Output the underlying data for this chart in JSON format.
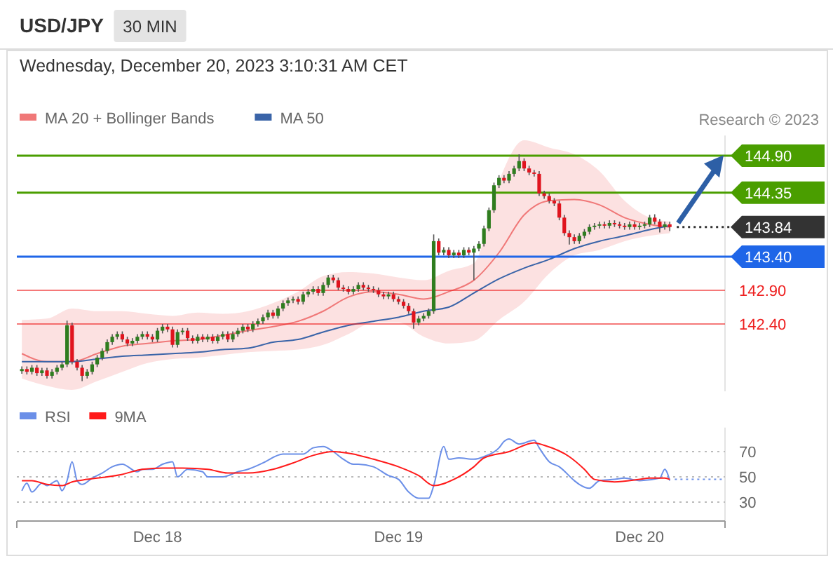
{
  "chart_data": [
    {
      "type": "candlestick",
      "title": "USD/JPY",
      "subtitle": "30 MIN",
      "annotations": [
        "Wednesday, December 20, 2023 3:10:31 AM CET",
        "Research © 2023"
      ],
      "legend": "top left",
      "xlim": [
        "2023-12-17T10:00",
        "2023-12-20T08:30"
      ],
      "ylim": [
        141.4,
        145.2
      ],
      "x": [
        "2023-12-17T10:30",
        "2023-12-17T11:00",
        "2023-12-17T11:30",
        "2023-12-17T12:00",
        "2023-12-17T12:30",
        "2023-12-17T13:00",
        "2023-12-17T13:30",
        "2023-12-17T14:00",
        "2023-12-17T14:30",
        "2023-12-17T15:00",
        "2023-12-17T15:30",
        "2023-12-17T16:00",
        "2023-12-17T16:30",
        "2023-12-17T17:00",
        "2023-12-17T17:30",
        "2023-12-17T18:00",
        "2023-12-17T18:30",
        "2023-12-17T19:00",
        "2023-12-17T19:30",
        "2023-12-17T20:00",
        "2023-12-17T20:30",
        "2023-12-17T21:00",
        "2023-12-17T21:30",
        "2023-12-17T22:00",
        "2023-12-17T22:30",
        "2023-12-17T23:00",
        "2023-12-17T23:30",
        "2023-12-18T00:00",
        "2023-12-18T00:30",
        "2023-12-18T01:00",
        "2023-12-18T01:30",
        "2023-12-18T02:00",
        "2023-12-18T02:30",
        "2023-12-18T03:00",
        "2023-12-18T03:30",
        "2023-12-18T04:00",
        "2023-12-18T04:30",
        "2023-12-18T05:00",
        "2023-12-18T05:30",
        "2023-12-18T06:00",
        "2023-12-18T06:30",
        "2023-12-18T07:00",
        "2023-12-18T07:30",
        "2023-12-18T08:00",
        "2023-12-18T08:30",
        "2023-12-18T09:00",
        "2023-12-18T09:30",
        "2023-12-18T10:00",
        "2023-12-18T10:30",
        "2023-12-18T11:00",
        "2023-12-18T11:30",
        "2023-12-18T12:00",
        "2023-12-18T12:30",
        "2023-12-18T13:00",
        "2023-12-18T13:30",
        "2023-12-18T14:00",
        "2023-12-18T14:30",
        "2023-12-18T15:00",
        "2023-12-18T15:30",
        "2023-12-18T16:00",
        "2023-12-18T16:30",
        "2023-12-18T17:00",
        "2023-12-18T17:30",
        "2023-12-18T18:00",
        "2023-12-18T18:30",
        "2023-12-18T19:00",
        "2023-12-18T19:30",
        "2023-12-18T20:00",
        "2023-12-18T20:30",
        "2023-12-18T21:00",
        "2023-12-18T21:30",
        "2023-12-18T22:00",
        "2023-12-18T22:30",
        "2023-12-18T23:00",
        "2023-12-18T23:30",
        "2023-12-19T00:00",
        "2023-12-19T00:30",
        "2023-12-19T01:00",
        "2023-12-19T01:30",
        "2023-12-19T02:00",
        "2023-12-19T02:30",
        "2023-12-19T03:00",
        "2023-12-19T03:30",
        "2023-12-19T04:00",
        "2023-12-19T04:30",
        "2023-12-19T05:00",
        "2023-12-19T05:30",
        "2023-12-19T06:00",
        "2023-12-19T06:30",
        "2023-12-19T07:00",
        "2023-12-19T07:30",
        "2023-12-19T08:00",
        "2023-12-19T08:30",
        "2023-12-19T09:00",
        "2023-12-19T09:30",
        "2023-12-19T10:00",
        "2023-12-19T10:30",
        "2023-12-19T11:00",
        "2023-12-19T11:30",
        "2023-12-19T12:00",
        "2023-12-19T12:30",
        "2023-12-19T13:00",
        "2023-12-19T13:30",
        "2023-12-19T14:00",
        "2023-12-19T14:30",
        "2023-12-19T15:00",
        "2023-12-19T15:30",
        "2023-12-19T16:00",
        "2023-12-19T16:30",
        "2023-12-19T17:00",
        "2023-12-19T17:30",
        "2023-12-19T18:00",
        "2023-12-19T18:30",
        "2023-12-19T19:00",
        "2023-12-19T19:30",
        "2023-12-19T20:00",
        "2023-12-19T20:30",
        "2023-12-19T21:00",
        "2023-12-19T21:30",
        "2023-12-19T22:00",
        "2023-12-19T22:30",
        "2023-12-19T23:00",
        "2023-12-19T23:30",
        "2023-12-20T00:00",
        "2023-12-20T00:30",
        "2023-12-20T01:00",
        "2023-12-20T01:30",
        "2023-12-20T02:00",
        "2023-12-20T02:30",
        "2023-12-20T03:00"
      ],
      "ohlc": [
        [
          141.7,
          141.77,
          141.66,
          141.73
        ],
        [
          141.73,
          141.77,
          141.65,
          141.69
        ],
        [
          141.69,
          141.79,
          141.65,
          141.75
        ],
        [
          141.75,
          141.79,
          141.63,
          141.67
        ],
        [
          141.67,
          141.75,
          141.63,
          141.71
        ],
        [
          141.71,
          141.75,
          141.59,
          141.63
        ],
        [
          141.63,
          141.73,
          141.59,
          141.69
        ],
        [
          141.69,
          141.79,
          141.65,
          141.75
        ],
        [
          141.75,
          141.84,
          141.71,
          141.8
        ],
        [
          141.8,
          142.45,
          141.76,
          142.38
        ],
        [
          142.38,
          142.42,
          141.8,
          141.84
        ],
        [
          141.84,
          141.88,
          141.71,
          141.75
        ],
        [
          141.75,
          141.79,
          141.55,
          141.63
        ],
        [
          141.63,
          141.73,
          141.59,
          141.69
        ],
        [
          141.69,
          141.84,
          141.65,
          141.8
        ],
        [
          141.8,
          141.94,
          141.76,
          141.9
        ],
        [
          141.9,
          142.04,
          141.86,
          142.0
        ],
        [
          142.0,
          142.17,
          141.96,
          142.13
        ],
        [
          142.13,
          142.25,
          142.09,
          142.21
        ],
        [
          142.21,
          142.29,
          142.17,
          142.25
        ],
        [
          142.25,
          142.29,
          142.13,
          142.17
        ],
        [
          142.17,
          142.21,
          142.07,
          142.11
        ],
        [
          142.11,
          142.19,
          142.07,
          142.15
        ],
        [
          142.15,
          142.25,
          142.11,
          142.21
        ],
        [
          142.21,
          142.29,
          142.17,
          142.25
        ],
        [
          142.25,
          142.29,
          142.17,
          142.21
        ],
        [
          142.21,
          142.25,
          142.13,
          142.17
        ],
        [
          142.17,
          142.34,
          142.13,
          142.3
        ],
        [
          142.3,
          142.4,
          142.26,
          142.36
        ],
        [
          142.36,
          142.4,
          142.28,
          142.32
        ],
        [
          142.32,
          142.36,
          142.05,
          142.09
        ],
        [
          142.09,
          142.32,
          142.05,
          142.28
        ],
        [
          142.28,
          142.34,
          142.24,
          142.3
        ],
        [
          142.3,
          142.34,
          142.15,
          142.19
        ],
        [
          142.19,
          142.23,
          142.11,
          142.15
        ],
        [
          142.15,
          142.25,
          142.11,
          142.21
        ],
        [
          142.21,
          142.25,
          142.13,
          142.17
        ],
        [
          142.17,
          142.25,
          142.13,
          142.21
        ],
        [
          142.21,
          142.25,
          142.11,
          142.15
        ],
        [
          142.15,
          142.25,
          142.11,
          142.21
        ],
        [
          142.21,
          142.29,
          142.17,
          142.25
        ],
        [
          142.25,
          142.29,
          142.13,
          142.17
        ],
        [
          142.17,
          142.29,
          142.13,
          142.25
        ],
        [
          142.25,
          142.34,
          142.21,
          142.3
        ],
        [
          142.3,
          142.4,
          142.26,
          142.36
        ],
        [
          142.36,
          142.4,
          142.28,
          142.32
        ],
        [
          142.32,
          142.44,
          142.28,
          142.4
        ],
        [
          142.4,
          142.48,
          142.36,
          142.44
        ],
        [
          142.44,
          142.54,
          142.4,
          142.5
        ],
        [
          142.5,
          142.61,
          142.46,
          142.57
        ],
        [
          142.57,
          142.61,
          142.48,
          142.52
        ],
        [
          142.52,
          142.67,
          142.48,
          142.63
        ],
        [
          142.63,
          142.75,
          142.59,
          142.71
        ],
        [
          142.71,
          142.79,
          142.67,
          142.75
        ],
        [
          142.75,
          142.81,
          142.71,
          142.77
        ],
        [
          142.77,
          142.81,
          142.69,
          142.73
        ],
        [
          142.73,
          142.88,
          142.69,
          142.84
        ],
        [
          142.84,
          142.92,
          142.8,
          142.88
        ],
        [
          142.88,
          142.96,
          142.84,
          142.92
        ],
        [
          142.92,
          142.96,
          142.82,
          142.86
        ],
        [
          142.86,
          143.02,
          142.82,
          142.98
        ],
        [
          142.98,
          143.13,
          142.94,
          143.09
        ],
        [
          143.09,
          143.13,
          143.01,
          143.05
        ],
        [
          143.05,
          143.09,
          142.9,
          142.94
        ],
        [
          142.94,
          142.98,
          142.88,
          142.92
        ],
        [
          142.92,
          142.96,
          142.84,
          142.88
        ],
        [
          142.88,
          142.96,
          142.84,
          142.92
        ],
        [
          142.92,
          143.02,
          142.88,
          142.98
        ],
        [
          142.98,
          143.02,
          142.9,
          142.94
        ],
        [
          142.94,
          142.98,
          142.88,
          142.92
        ],
        [
          142.92,
          142.96,
          142.86,
          142.9
        ],
        [
          142.9,
          142.94,
          142.8,
          142.84
        ],
        [
          142.84,
          142.88,
          142.77,
          142.81
        ],
        [
          142.81,
          142.88,
          142.77,
          142.84
        ],
        [
          142.84,
          142.88,
          142.73,
          142.77
        ],
        [
          142.77,
          142.81,
          142.69,
          142.73
        ],
        [
          142.73,
          142.77,
          142.63,
          142.67
        ],
        [
          142.67,
          142.71,
          142.55,
          142.59
        ],
        [
          142.59,
          142.63,
          142.33,
          142.42
        ],
        [
          142.42,
          142.52,
          142.38,
          142.48
        ],
        [
          142.48,
          142.56,
          142.44,
          142.52
        ],
        [
          142.52,
          142.63,
          142.48,
          142.59
        ],
        [
          142.59,
          143.73,
          142.55,
          143.63
        ],
        [
          143.63,
          143.67,
          143.42,
          143.46
        ],
        [
          143.46,
          143.54,
          143.42,
          143.5
        ],
        [
          143.5,
          143.54,
          143.38,
          143.42
        ],
        [
          143.42,
          143.5,
          143.38,
          143.46
        ],
        [
          143.46,
          143.5,
          143.38,
          143.42
        ],
        [
          143.42,
          143.54,
          143.38,
          143.5
        ],
        [
          143.5,
          143.54,
          143.42,
          143.46
        ],
        [
          143.46,
          143.56,
          143.05,
          143.52
        ],
        [
          143.52,
          143.63,
          143.48,
          143.59
        ],
        [
          143.59,
          143.86,
          143.55,
          143.82
        ],
        [
          143.82,
          144.13,
          143.78,
          144.09
        ],
        [
          144.09,
          144.5,
          144.05,
          144.46
        ],
        [
          144.46,
          144.61,
          144.42,
          144.57
        ],
        [
          144.57,
          144.61,
          144.49,
          144.53
        ],
        [
          144.53,
          144.67,
          144.49,
          144.63
        ],
        [
          144.63,
          144.75,
          144.59,
          144.71
        ],
        [
          144.71,
          144.92,
          144.67,
          144.82
        ],
        [
          144.82,
          144.86,
          144.67,
          144.71
        ],
        [
          144.71,
          144.75,
          144.61,
          144.65
        ],
        [
          144.65,
          144.69,
          144.59,
          144.63
        ],
        [
          144.63,
          144.67,
          144.3,
          144.34
        ],
        [
          144.34,
          144.38,
          144.26,
          144.3
        ],
        [
          144.3,
          144.34,
          144.19,
          144.23
        ],
        [
          144.23,
          144.27,
          144.15,
          144.19
        ],
        [
          144.19,
          144.23,
          143.94,
          143.98
        ],
        [
          143.98,
          144.02,
          143.71,
          143.75
        ],
        [
          143.75,
          143.79,
          143.58,
          143.69
        ],
        [
          143.69,
          143.73,
          143.59,
          143.63
        ],
        [
          143.63,
          143.75,
          143.59,
          143.71
        ],
        [
          143.71,
          143.81,
          143.67,
          143.77
        ],
        [
          143.77,
          143.88,
          143.73,
          143.84
        ],
        [
          143.84,
          143.9,
          143.8,
          143.86
        ],
        [
          143.86,
          143.92,
          143.82,
          143.88
        ],
        [
          143.88,
          143.92,
          143.82,
          143.86
        ],
        [
          143.86,
          143.94,
          143.82,
          143.9
        ],
        [
          143.9,
          143.94,
          143.84,
          143.88
        ],
        [
          143.88,
          143.92,
          143.82,
          143.86
        ],
        [
          143.86,
          143.9,
          143.8,
          143.84
        ],
        [
          143.84,
          143.92,
          143.8,
          143.88
        ],
        [
          143.88,
          143.92,
          143.8,
          143.84
        ],
        [
          143.84,
          143.9,
          143.8,
          143.86
        ],
        [
          143.86,
          143.92,
          143.82,
          143.88
        ],
        [
          143.88,
          144.02,
          143.84,
          143.98
        ],
        [
          143.98,
          144.03,
          143.88,
          143.92
        ],
        [
          143.92,
          143.96,
          143.76,
          143.84
        ],
        [
          143.84,
          143.92,
          143.8,
          143.88
        ],
        [
          143.88,
          143.92,
          143.78,
          143.84
        ]
      ],
      "series": [
        {
          "name": "MA 20 + Bollinger Bands",
          "type": "line",
          "color": "#f07878",
          "x": [
            "2023-12-17T10:30",
            "2023-12-17T13:00",
            "2023-12-17T15:30",
            "2023-12-17T18:00",
            "2023-12-17T20:30",
            "2023-12-17T23:00",
            "2023-12-18T01:30",
            "2023-12-18T04:00",
            "2023-12-18T06:30",
            "2023-12-18T09:00",
            "2023-12-18T11:30",
            "2023-12-18T14:00",
            "2023-12-18T16:30",
            "2023-12-18T19:00",
            "2023-12-18T21:30",
            "2023-12-19T00:00",
            "2023-12-19T02:30",
            "2023-12-19T05:00",
            "2023-12-19T07:30",
            "2023-12-19T10:00",
            "2023-12-19T12:30",
            "2023-12-19T15:00",
            "2023-12-19T17:30",
            "2023-12-19T20:00",
            "2023-12-19T22:30",
            "2023-12-20T01:00",
            "2023-12-20T03:00"
          ],
          "values": [
            141.96,
            141.84,
            141.84,
            141.96,
            142.07,
            142.11,
            142.15,
            142.17,
            142.23,
            142.3,
            142.36,
            142.44,
            142.59,
            142.8,
            142.88,
            142.84,
            142.77,
            142.88,
            143.05,
            143.46,
            144.02,
            144.23,
            144.25,
            144.17,
            143.98,
            143.88,
            143.84
          ],
          "upper": [
            142.46,
            142.48,
            142.63,
            142.59,
            142.59,
            142.55,
            142.52,
            142.57,
            142.55,
            142.59,
            142.71,
            142.88,
            143.11,
            143.17,
            143.15,
            143.09,
            143.05,
            143.19,
            143.3,
            144.52,
            145.13,
            145.02,
            144.92,
            144.67,
            144.23,
            143.98,
            143.92
          ],
          "lower": [
            141.59,
            141.48,
            141.42,
            141.55,
            141.69,
            141.82,
            141.88,
            141.9,
            141.94,
            141.98,
            142.0,
            142.02,
            142.09,
            142.25,
            142.42,
            142.42,
            142.21,
            142.11,
            142.15,
            142.46,
            142.73,
            143.15,
            143.42,
            143.5,
            143.63,
            143.71,
            143.75
          ]
        },
        {
          "name": "MA 50",
          "type": "line",
          "color": "#3a64a8",
          "x": [
            "2023-12-17T10:30",
            "2023-12-17T13:00",
            "2023-12-17T15:30",
            "2023-12-17T18:00",
            "2023-12-17T20:30",
            "2023-12-17T23:00",
            "2023-12-18T01:30",
            "2023-12-18T04:00",
            "2023-12-18T06:30",
            "2023-12-18T09:00",
            "2023-12-18T11:30",
            "2023-12-18T14:00",
            "2023-12-18T16:30",
            "2023-12-18T19:00",
            "2023-12-18T21:30",
            "2023-12-19T00:00",
            "2023-12-19T02:30",
            "2023-12-19T05:00",
            "2023-12-19T07:30",
            "2023-12-19T10:00",
            "2023-12-19T12:30",
            "2023-12-19T15:00",
            "2023-12-19T17:30",
            "2023-12-19T20:00",
            "2023-12-19T22:30",
            "2023-12-20T01:00",
            "2023-12-20T03:00"
          ],
          "values": [
            141.84,
            141.84,
            141.84,
            141.88,
            141.92,
            141.94,
            141.96,
            141.98,
            142.02,
            142.04,
            142.13,
            142.17,
            142.28,
            142.38,
            142.44,
            142.5,
            142.59,
            142.65,
            142.86,
            143.07,
            143.23,
            143.36,
            143.52,
            143.63,
            143.71,
            143.8,
            143.86
          ]
        }
      ],
      "ref_lines": [
        {
          "axis": "y",
          "value": 144.9,
          "label": "144.90",
          "color": "#4a9e00"
        },
        {
          "axis": "y",
          "value": 144.35,
          "label": "144.35",
          "color": "#4a9e00"
        },
        {
          "axis": "y",
          "value": 143.84,
          "label": "143.84",
          "color": "#333333",
          "line_style": "dotted"
        },
        {
          "axis": "y",
          "value": 143.4,
          "label": "143.40",
          "color": "#1f66e8"
        },
        {
          "axis": "y",
          "value": 142.9,
          "label": "142.90",
          "color": "#ee2020"
        },
        {
          "axis": "y",
          "value": 142.4,
          "label": "142.40",
          "color": "#ee2020"
        }
      ]
    },
    {
      "type": "line",
      "legend": "top left",
      "grid": "y",
      "xlim": [
        "2023-12-17T10:00",
        "2023-12-20T08:30"
      ],
      "ylim": [
        15,
        89
      ],
      "yticks": [
        30,
        50,
        70
      ],
      "xticks": [
        {
          "value": "2023-12-18",
          "label": "Dec 18"
        },
        {
          "value": "2023-12-19",
          "label": "Dec 19"
        },
        {
          "value": "2023-12-20",
          "label": "Dec 20"
        }
      ],
      "series": [
        {
          "name": "RSI",
          "color": "#6b8fe8",
          "x": [
            "2023-12-17T10:30",
            "2023-12-17T11:00",
            "2023-12-17T11:30",
            "2023-12-17T12:30",
            "2023-12-17T13:00",
            "2023-12-17T14:00",
            "2023-12-17T14:30",
            "2023-12-17T15:00",
            "2023-12-17T15:30",
            "2023-12-17T16:00",
            "2023-12-17T16:30",
            "2023-12-17T17:30",
            "2023-12-17T18:30",
            "2023-12-17T19:30",
            "2023-12-17T20:30",
            "2023-12-17T22:00",
            "2023-12-17T22:30",
            "2023-12-17T23:30",
            "2023-12-18T00:30",
            "2023-12-18T01:30",
            "2023-12-18T02:00",
            "2023-12-18T03:00",
            "2023-12-18T04:30",
            "2023-12-18T05:00",
            "2023-12-18T06:30",
            "2023-12-18T08:00",
            "2023-12-18T09:00",
            "2023-12-18T10:30",
            "2023-12-18T12:30",
            "2023-12-18T13:30",
            "2023-12-18T14:30",
            "2023-12-18T15:30",
            "2023-12-18T16:30",
            "2023-12-18T17:30",
            "2023-12-18T18:30",
            "2023-12-18T19:30",
            "2023-12-18T20:00",
            "2023-12-18T21:30",
            "2023-12-18T23:00",
            "2023-12-19T00:00",
            "2023-12-19T01:00",
            "2023-12-19T02:00",
            "2023-12-19T03:00",
            "2023-12-19T03:30",
            "2023-12-19T04:30",
            "2023-12-19T05:00",
            "2023-12-19T06:00",
            "2023-12-19T07:30",
            "2023-12-19T08:30",
            "2023-12-19T10:00",
            "2023-12-19T10:30",
            "2023-12-19T11:00",
            "2023-12-19T12:00",
            "2023-12-19T13:30",
            "2023-12-19T14:00",
            "2023-12-19T15:00",
            "2023-12-19T16:00",
            "2023-12-19T17:30",
            "2023-12-19T18:00",
            "2023-12-19T19:00",
            "2023-12-19T20:00",
            "2023-12-19T21:30",
            "2023-12-19T22:30",
            "2023-12-20T00:00",
            "2023-12-20T02:00",
            "2023-12-20T02:30",
            "2023-12-20T03:00"
          ],
          "values": [
            39,
            45,
            38,
            45,
            43,
            47,
            39,
            47,
            62,
            47,
            44,
            49,
            53,
            58,
            60,
            54,
            56,
            56,
            60,
            62,
            50,
            56,
            54,
            50,
            50,
            54,
            56,
            61,
            68,
            68,
            68,
            73,
            74,
            70,
            64,
            60,
            60,
            58,
            51,
            48,
            38,
            33,
            33,
            43,
            74,
            64,
            65,
            64,
            66,
            73,
            78,
            80,
            76,
            79,
            73,
            62,
            58,
            47,
            44,
            41,
            47,
            48,
            49,
            47,
            49,
            56,
            47
          ]
        },
        {
          "name": "9MA",
          "color": "#ff1a1a",
          "x": [
            "2023-12-17T10:30",
            "2023-12-17T11:30",
            "2023-12-17T13:00",
            "2023-12-17T14:30",
            "2023-12-17T15:30",
            "2023-12-17T17:00",
            "2023-12-17T19:00",
            "2023-12-17T20:30",
            "2023-12-17T22:30",
            "2023-12-18T00:30",
            "2023-12-18T02:30",
            "2023-12-18T05:00",
            "2023-12-18T07:00",
            "2023-12-18T09:00",
            "2023-12-18T11:30",
            "2023-12-18T13:30",
            "2023-12-18T15:30",
            "2023-12-18T17:30",
            "2023-12-18T19:30",
            "2023-12-18T21:30",
            "2023-12-19T00:00",
            "2023-12-19T02:00",
            "2023-12-19T03:30",
            "2023-12-19T05:30",
            "2023-12-19T07:30",
            "2023-12-19T08:30",
            "2023-12-19T11:00",
            "2023-12-19T13:30",
            "2023-12-19T14:30",
            "2023-12-19T17:00",
            "2023-12-19T18:30",
            "2023-12-19T19:30",
            "2023-12-19T21:30",
            "2023-12-20T00:00",
            "2023-12-20T01:00",
            "2023-12-20T02:30",
            "2023-12-20T03:00"
          ],
          "values": [
            47,
            47,
            44,
            43,
            46,
            48,
            50,
            52,
            56,
            57,
            57,
            56,
            53,
            53,
            56,
            61,
            67,
            70,
            68,
            64,
            58,
            51,
            43,
            48,
            58,
            65,
            70,
            77,
            75,
            66,
            56,
            48,
            46,
            48,
            49,
            49,
            48
          ]
        },
        {
          "color": "#6b8fe8",
          "line_style": "dotted",
          "x": [
            "2023-12-20T03:30",
            "2023-12-20T08:30"
          ],
          "values": [
            48,
            48
          ]
        }
      ]
    }
  ]
}
